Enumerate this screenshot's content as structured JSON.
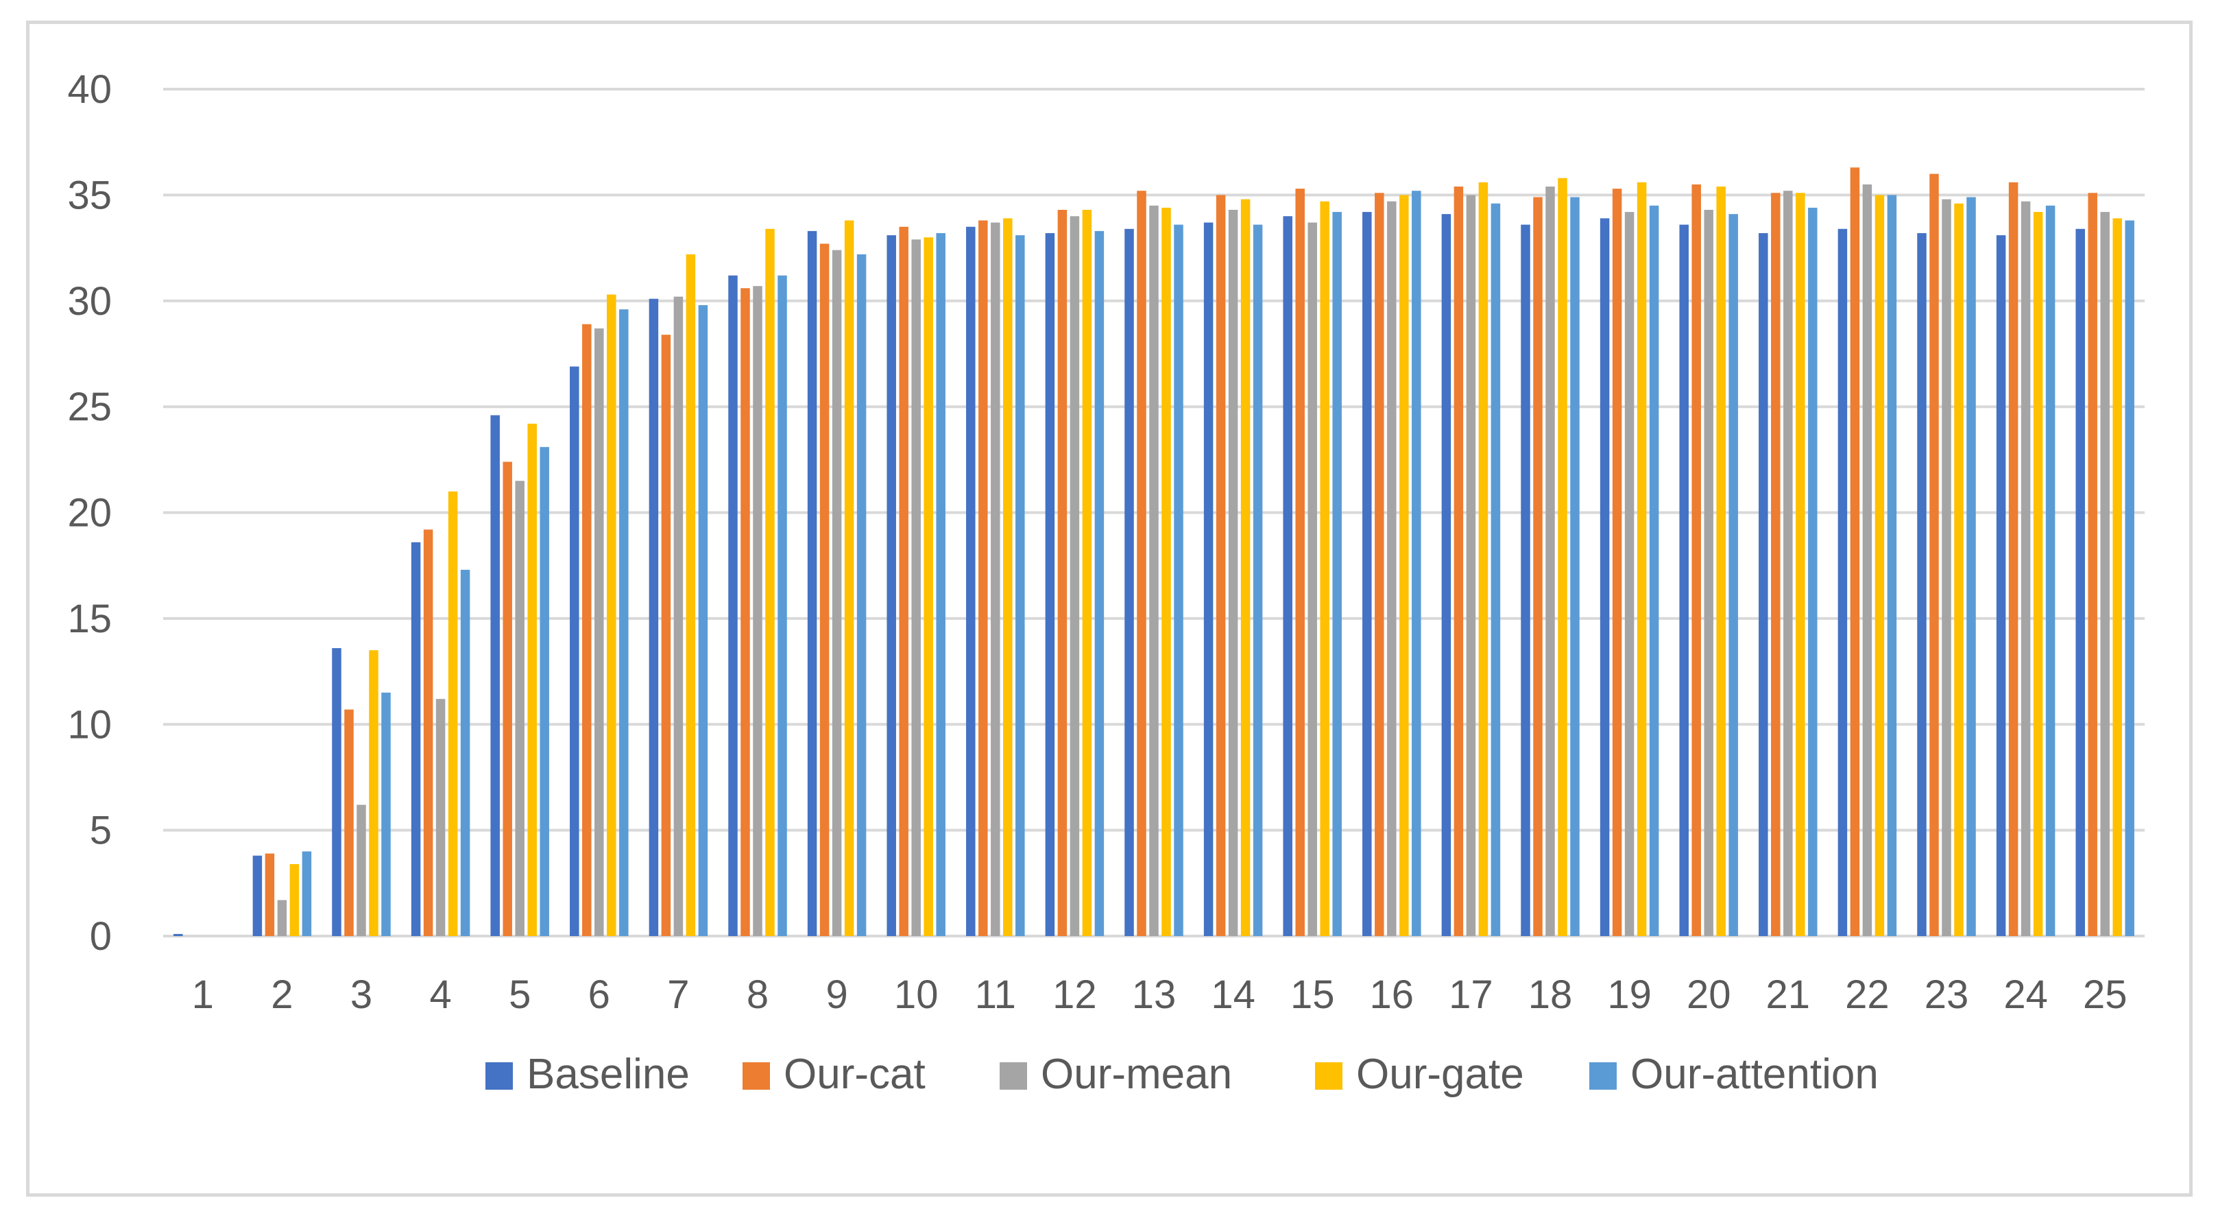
{
  "chart_data": {
    "type": "bar",
    "title": "",
    "xlabel": "",
    "ylabel": "",
    "ylim": [
      0,
      40
    ],
    "yticks": [
      "0",
      "5",
      "10",
      "15",
      "20",
      "25",
      "30",
      "35",
      "40"
    ],
    "grid": true,
    "legend_position": "bottom-center",
    "categories": [
      "1",
      "2",
      "3",
      "4",
      "5",
      "6",
      "7",
      "8",
      "9",
      "10",
      "11",
      "12",
      "13",
      "14",
      "15",
      "16",
      "17",
      "18",
      "19",
      "20",
      "21",
      "22",
      "23",
      "24",
      "25"
    ],
    "series": [
      {
        "name": "Baseline",
        "color": "#4472c4",
        "values": [
          0.1,
          3.8,
          13.6,
          18.6,
          24.6,
          26.9,
          30.1,
          31.2,
          33.3,
          33.1,
          33.5,
          33.2,
          33.4,
          33.7,
          34.0,
          34.2,
          34.1,
          33.6,
          33.9,
          33.6,
          33.2,
          33.4,
          33.2,
          33.1,
          33.4
        ]
      },
      {
        "name": "Our-cat",
        "color": "#ed7d31",
        "values": [
          0.0,
          3.9,
          10.7,
          19.2,
          22.4,
          28.9,
          28.4,
          30.6,
          32.7,
          33.5,
          33.8,
          34.3,
          35.2,
          35.0,
          35.3,
          35.1,
          35.4,
          34.9,
          35.3,
          35.5,
          35.1,
          36.3,
          36.0,
          35.6,
          35.1
        ]
      },
      {
        "name": "Our-mean",
        "color": "#a5a5a5",
        "values": [
          0.0,
          1.7,
          6.2,
          11.2,
          21.5,
          28.7,
          30.2,
          30.7,
          32.4,
          32.9,
          33.7,
          34.0,
          34.5,
          34.3,
          33.7,
          34.7,
          35.0,
          35.4,
          34.2,
          34.3,
          35.2,
          35.5,
          34.8,
          34.7,
          34.2
        ]
      },
      {
        "name": "Our-gate",
        "color": "#ffc000",
        "values": [
          0.0,
          3.4,
          13.5,
          21.0,
          24.2,
          30.3,
          32.2,
          33.4,
          33.8,
          33.0,
          33.9,
          34.3,
          34.4,
          34.8,
          34.7,
          35.0,
          35.6,
          35.8,
          35.6,
          35.4,
          35.1,
          35.0,
          34.6,
          34.2,
          33.9
        ]
      },
      {
        "name": "Our-attention",
        "color": "#5b9bd5",
        "values": [
          0.0,
          4.0,
          11.5,
          17.3,
          23.1,
          29.6,
          29.8,
          31.2,
          32.2,
          33.2,
          33.1,
          33.3,
          33.6,
          33.6,
          34.2,
          35.2,
          34.6,
          34.9,
          34.5,
          34.1,
          34.4,
          35.0,
          34.9,
          34.5,
          33.8
        ]
      }
    ]
  },
  "colors": {
    "grid": "#d9d9d9",
    "axis_text": "#595959",
    "border": "#d9d9d9"
  }
}
